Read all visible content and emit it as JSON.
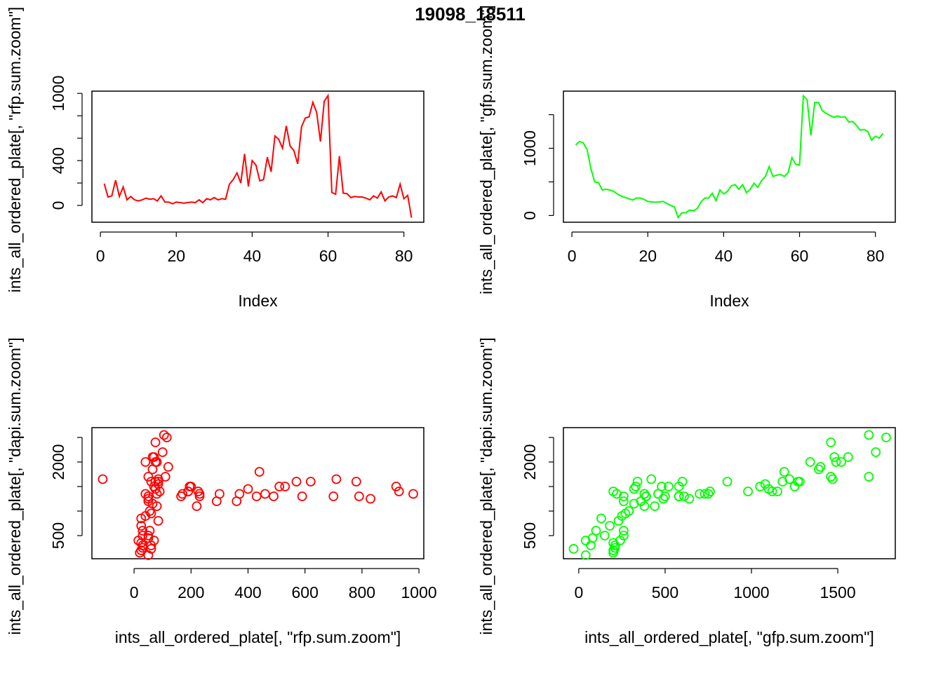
{
  "title": "19098_18511",
  "chart_data": [
    {
      "type": "line",
      "color": "#ff0000",
      "xlabel": "Index",
      "ylabel": "ints_all_ordered_plate[, \"rfp.sum.zoom\"]",
      "x": [
        1,
        2,
        3,
        4,
        5,
        6,
        7,
        8,
        9,
        10,
        11,
        12,
        13,
        14,
        15,
        16,
        17,
        18,
        19,
        20,
        21,
        22,
        23,
        24,
        25,
        26,
        27,
        28,
        29,
        30,
        31,
        32,
        33,
        34,
        35,
        36,
        37,
        38,
        39,
        40,
        41,
        42,
        43,
        44,
        45,
        46,
        47,
        48,
        49,
        50,
        51,
        52,
        53,
        54,
        55,
        56,
        57,
        58,
        59,
        60,
        61,
        62,
        63,
        64,
        65,
        66,
        67,
        68,
        69,
        70,
        71,
        72,
        73,
        74,
        75,
        76,
        77,
        78,
        79,
        80,
        81,
        82
      ],
      "values": [
        195,
        75,
        85,
        225,
        80,
        165,
        50,
        80,
        50,
        40,
        50,
        65,
        55,
        60,
        40,
        85,
        30,
        30,
        15,
        30,
        25,
        20,
        25,
        30,
        25,
        50,
        25,
        60,
        50,
        70,
        50,
        60,
        55,
        190,
        230,
        290,
        200,
        460,
        170,
        400,
        360,
        220,
        230,
        430,
        300,
        620,
        590,
        510,
        710,
        530,
        490,
        370,
        700,
        780,
        790,
        920,
        830,
        570,
        930,
        980,
        115,
        100,
        440,
        110,
        105,
        70,
        80,
        75,
        75,
        65,
        50,
        85,
        65,
        120,
        40,
        75,
        85,
        70,
        190,
        60,
        90,
        -110
      ],
      "xlim": [
        -2.24,
        85.24
      ],
      "xticks": [
        0,
        20,
        40,
        60,
        80
      ],
      "ylim": [
        -150,
        1020
      ],
      "yticks": [
        0,
        400,
        1000
      ],
      "yticks_minor": [
        200,
        600,
        800
      ]
    },
    {
      "type": "line",
      "color": "#00ff00",
      "xlabel": "Index",
      "ylabel": "ints_all_ordered_plate[, \"gfp.sum.zoom\"]",
      "x": [
        1,
        2,
        3,
        4,
        5,
        6,
        7,
        8,
        9,
        10,
        11,
        12,
        13,
        14,
        15,
        16,
        17,
        18,
        19,
        20,
        21,
        22,
        23,
        24,
        25,
        26,
        27,
        28,
        29,
        30,
        31,
        32,
        33,
        34,
        35,
        36,
        37,
        38,
        39,
        40,
        41,
        42,
        43,
        44,
        45,
        46,
        47,
        48,
        49,
        50,
        51,
        52,
        53,
        54,
        55,
        56,
        57,
        58,
        59,
        60,
        61,
        62,
        63,
        64,
        65,
        66,
        67,
        68,
        69,
        70,
        71,
        72,
        73,
        74,
        75,
        76,
        77,
        78,
        79,
        80,
        81,
        82
      ],
      "values": [
        1050,
        1100,
        1080,
        980,
        700,
        500,
        490,
        380,
        390,
        380,
        360,
        320,
        290,
        270,
        250,
        230,
        260,
        260,
        240,
        210,
        200,
        200,
        200,
        210,
        180,
        150,
        130,
        -30,
        40,
        40,
        80,
        70,
        100,
        200,
        260,
        260,
        330,
        220,
        380,
        320,
        360,
        440,
        460,
        390,
        460,
        340,
        390,
        480,
        420,
        520,
        580,
        730,
        580,
        600,
        610,
        580,
        640,
        860,
        760,
        750,
        1780,
        1720,
        1190,
        1680,
        1680,
        1560,
        1520,
        1490,
        1460,
        1480,
        1460,
        1470,
        1390,
        1400,
        1340,
        1270,
        1280,
        1250,
        1120,
        1180,
        1150,
        1220
      ],
      "xlim": [
        -2.24,
        85.24
      ],
      "xticks": [
        0,
        20,
        40,
        60,
        80
      ],
      "ylim": [
        -100,
        1850
      ],
      "yticks": [
        0,
        1000
      ],
      "yticks_minor": [
        500,
        1500
      ]
    },
    {
      "type": "scatter",
      "color": "#ff0000",
      "xlabel": "ints_all_ordered_plate[, \"rfp.sum.zoom\"]",
      "ylabel": "ints_all_ordered_plate[, \"dapi.sum.zoom\"]",
      "x": [
        195,
        75,
        85,
        225,
        80,
        165,
        50,
        80,
        50,
        40,
        50,
        65,
        55,
        60,
        40,
        85,
        30,
        30,
        15,
        30,
        25,
        20,
        25,
        30,
        25,
        50,
        25,
        60,
        50,
        70,
        50,
        60,
        55,
        190,
        230,
        290,
        200,
        460,
        170,
        400,
        360,
        220,
        230,
        430,
        300,
        620,
        590,
        510,
        710,
        530,
        490,
        370,
        700,
        780,
        790,
        920,
        830,
        570,
        930,
        980,
        115,
        100,
        440,
        110,
        105,
        70,
        80,
        75,
        75,
        65,
        50,
        85,
        65,
        120,
        40,
        75,
        85,
        70,
        190,
        60,
        90,
        -110
      ],
      "values": [
        1500,
        1450,
        1550,
        1400,
        1350,
        1300,
        1250,
        1100,
        1300,
        1350,
        1200,
        1150,
        1000,
        950,
        900,
        800,
        600,
        500,
        400,
        300,
        350,
        150,
        200,
        250,
        700,
        500,
        850,
        230,
        100,
        400,
        450,
        300,
        600,
        1400,
        1300,
        1200,
        1500,
        1350,
        1350,
        1450,
        1200,
        1100,
        1350,
        1300,
        1350,
        1600,
        1300,
        1500,
        1650,
        1500,
        1300,
        1350,
        1300,
        1600,
        1300,
        1500,
        1250,
        1600,
        1400,
        1350,
        2500,
        2200,
        1800,
        1700,
        2550,
        2100,
        2000,
        2000,
        2400,
        2100,
        1700,
        1650,
        1850,
        1900,
        2000,
        1600,
        1600,
        1500,
        1400,
        1600,
        1400,
        1650
      ],
      "xlim": [
        -148,
        1017
      ],
      "xticks": [
        0,
        200,
        400,
        600,
        800,
        1000
      ],
      "ylim": [
        29,
        2700
      ],
      "yticks": [
        500,
        2000
      ],
      "yticks_minor": [
        1000,
        1500,
        2500
      ]
    },
    {
      "type": "scatter",
      "color": "#00ff00",
      "xlabel": "ints_all_ordered_plate[, \"gfp.sum.zoom\"]",
      "ylabel": "ints_all_ordered_plate[, \"dapi.sum.zoom\"]",
      "x": [
        1050,
        1100,
        1080,
        980,
        700,
        500,
        490,
        380,
        390,
        380,
        360,
        320,
        290,
        270,
        250,
        230,
        260,
        260,
        240,
        210,
        200,
        200,
        200,
        210,
        180,
        150,
        130,
        -30,
        40,
        40,
        80,
        70,
        100,
        200,
        260,
        260,
        330,
        220,
        380,
        320,
        360,
        440,
        460,
        390,
        460,
        340,
        390,
        480,
        420,
        520,
        580,
        730,
        580,
        600,
        610,
        580,
        640,
        860,
        760,
        750,
        1780,
        1720,
        1190,
        1680,
        1680,
        1560,
        1520,
        1490,
        1460,
        1480,
        1460,
        1470,
        1390,
        1400,
        1340,
        1270,
        1280,
        1250,
        1120,
        1180,
        1150,
        1220
      ],
      "values": [
        1500,
        1450,
        1550,
        1400,
        1350,
        1300,
        1250,
        1100,
        1300,
        1350,
        1200,
        1150,
        1000,
        950,
        900,
        800,
        600,
        500,
        400,
        300,
        350,
        150,
        200,
        250,
        700,
        500,
        850,
        230,
        100,
        400,
        450,
        300,
        600,
        1400,
        1300,
        1200,
        1500,
        1350,
        1350,
        1450,
        1200,
        1100,
        1350,
        1300,
        1350,
        1600,
        1300,
        1500,
        1650,
        1500,
        1300,
        1350,
        1300,
        1600,
        1300,
        1500,
        1250,
        1600,
        1400,
        1350,
        2500,
        2200,
        1800,
        1700,
        2550,
        2100,
        2000,
        2000,
        2400,
        2100,
        1700,
        1650,
        1850,
        1900,
        2000,
        1600,
        1600,
        1500,
        1400,
        1600,
        1400,
        1650
      ],
      "xlim": [
        -89,
        1833
      ],
      "xticks": [
        0,
        500,
        1000,
        1500
      ],
      "ylim": [
        29,
        2700
      ],
      "yticks": [
        500,
        2000
      ],
      "yticks_minor": [
        1000,
        1500,
        2500
      ]
    }
  ]
}
